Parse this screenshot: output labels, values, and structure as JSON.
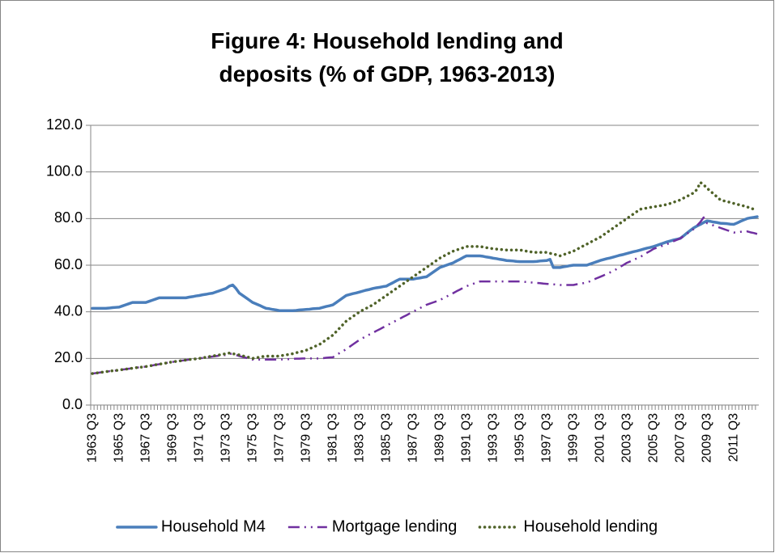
{
  "chart_data": {
    "type": "line",
    "title": [
      "Figure 4: Household lending and",
      "deposits (% of GDP, 1963-2013)"
    ],
    "categories": [
      "1963 Q3",
      null,
      null,
      null,
      null,
      null,
      null,
      null,
      "1965 Q3",
      null,
      null,
      null,
      null,
      null,
      null,
      null,
      "1967 Q3",
      null,
      null,
      null,
      null,
      null,
      null,
      null,
      "1969 Q3",
      null,
      null,
      null,
      null,
      null,
      null,
      null,
      "1971 Q3",
      null,
      null,
      null,
      null,
      null,
      null,
      null,
      "1973 Q3",
      null,
      null,
      null,
      null,
      null,
      null,
      null,
      "1975 Q3",
      null,
      null,
      null,
      null,
      null,
      null,
      null,
      "1977 Q3",
      null,
      null,
      null,
      null,
      null,
      null,
      null,
      "1979 Q3",
      null,
      null,
      null,
      null,
      null,
      null,
      null,
      "1981 Q3",
      null,
      null,
      null,
      null,
      null,
      null,
      null,
      "1983 Q3",
      null,
      null,
      null,
      null,
      null,
      null,
      null,
      "1985 Q3",
      null,
      null,
      null,
      null,
      null,
      null,
      null,
      "1987 Q3",
      null,
      null,
      null,
      null,
      null,
      null,
      null,
      "1989 Q3",
      null,
      null,
      null,
      null,
      null,
      null,
      null,
      "1991 Q3",
      null,
      null,
      null,
      null,
      null,
      null,
      null,
      "1993 Q3",
      null,
      null,
      null,
      null,
      null,
      null,
      null,
      "1995 Q3",
      null,
      null,
      null,
      null,
      null,
      null,
      null,
      "1997 Q3",
      null,
      null,
      null,
      null,
      null,
      null,
      null,
      "1999 Q3",
      null,
      null,
      null,
      null,
      null,
      null,
      null,
      "2001 Q3",
      null,
      null,
      null,
      null,
      null,
      null,
      null,
      "2003 Q3",
      null,
      null,
      null,
      null,
      null,
      null,
      null,
      "2005 Q3",
      null,
      null,
      null,
      null,
      null,
      null,
      null,
      "2007 Q3",
      null,
      null,
      null,
      null,
      null,
      null,
      null,
      "2009 Q3",
      null,
      null,
      null,
      null,
      null,
      null,
      null,
      "2011 Q3",
      null,
      null,
      null,
      null,
      null,
      null,
      null
    ],
    "series": [
      {
        "name": "Household M4",
        "color": "#4a7ebb",
        "style": "solid",
        "values": [
          41.5,
          41.5,
          41.5,
          41.5,
          41.5,
          41.6,
          41.8,
          41.9,
          42,
          42.5,
          43,
          43.5,
          44,
          44,
          44,
          44,
          44,
          44.5,
          45,
          45.5,
          46,
          46,
          46,
          46,
          46,
          46,
          46,
          46,
          46,
          46.3,
          46.5,
          46.8,
          47,
          47.3,
          47.5,
          47.8,
          48,
          48.5,
          49,
          49.5,
          50,
          51,
          51.5,
          50,
          48,
          47,
          46,
          45,
          44,
          43.4,
          42.8,
          42.1,
          41.5,
          41.3,
          41,
          40.8,
          40.5,
          40.5,
          40.5,
          40.5,
          40.5,
          40.6,
          40.8,
          40.9,
          41,
          41.1,
          41.3,
          41.4,
          41.5,
          41.9,
          42.3,
          42.6,
          43,
          44,
          45,
          46,
          47,
          47.4,
          47.8,
          48.1,
          48.5,
          48.9,
          49.3,
          49.6,
          50,
          50.3,
          50.5,
          50.8,
          51,
          51.8,
          52.5,
          53.3,
          54,
          54,
          54,
          54,
          54,
          54.3,
          54.5,
          54.8,
          55,
          56,
          57,
          58,
          59,
          59.5,
          60,
          60.5,
          61,
          61.8,
          62.5,
          63.3,
          64,
          64,
          64,
          64,
          64,
          63.8,
          63.5,
          63.3,
          63,
          62.8,
          62.5,
          62.3,
          62,
          61.9,
          61.8,
          61.6,
          61.5,
          61.5,
          61.5,
          61.5,
          61.5,
          61.6,
          61.8,
          61.9,
          62,
          62.5,
          59,
          59,
          59,
          59.3,
          59.5,
          59.8,
          60,
          60,
          60,
          60,
          60,
          60.5,
          61,
          61.5,
          62,
          62.4,
          62.8,
          63.1,
          63.5,
          63.9,
          64.3,
          64.6,
          65,
          65.4,
          65.8,
          66.1,
          66.5,
          66.9,
          67.3,
          67.6,
          68,
          68.5,
          69,
          69.5,
          70,
          70.4,
          70.8,
          71.1,
          71.5,
          72.6,
          73.8,
          74.9,
          76,
          76.8,
          77.5,
          78.3,
          79,
          78.8,
          78.5,
          78.3,
          78,
          77.9,
          77.8,
          77.6,
          77.5,
          78.1,
          78.8,
          79.4,
          80,
          80.3,
          80.5,
          80.8
        ]
      },
      {
        "name": "Mortgage lending",
        "color": "#7030a0",
        "style": "dash-dot",
        "values": [
          13.5,
          13.7,
          13.9,
          14.1,
          14.3,
          14.5,
          14.7,
          14.8,
          15,
          15.2,
          15.4,
          15.6,
          15.8,
          16,
          16.2,
          16.3,
          16.5,
          16.8,
          17,
          17.3,
          17.5,
          17.8,
          18,
          18.3,
          18.5,
          18.7,
          18.9,
          19.1,
          19.3,
          19.5,
          19.7,
          19.8,
          20,
          20.2,
          20.4,
          20.6,
          20.8,
          21,
          21.2,
          21.3,
          21.5,
          22,
          22,
          21.5,
          21,
          20.6,
          20.3,
          19.9,
          19.5,
          19.5,
          19.5,
          19.5,
          19.5,
          19.5,
          19.5,
          19.5,
          19.5,
          19.6,
          19.7,
          19.7,
          19.8,
          19.9,
          19.9,
          20,
          20,
          20,
          20,
          20,
          20,
          20.1,
          20.3,
          20.4,
          20.5,
          21.4,
          22.3,
          23.1,
          24,
          25,
          26,
          27,
          28,
          28.8,
          29.5,
          30.3,
          31,
          31.8,
          32.5,
          33.3,
          34,
          34.8,
          35.5,
          36.3,
          37,
          37.8,
          38.5,
          39.3,
          40,
          40.8,
          41.5,
          42.3,
          43,
          43.5,
          44,
          44.5,
          45,
          45.8,
          46.5,
          47.3,
          48,
          48.8,
          49.5,
          50.3,
          51,
          51.5,
          52,
          52.5,
          53,
          53,
          53,
          53,
          53,
          53,
          53,
          53,
          53,
          53,
          53,
          53,
          53,
          52.9,
          52.8,
          52.6,
          52.5,
          52.4,
          52.3,
          52.1,
          52,
          51.9,
          51.8,
          51.6,
          51.5,
          51.5,
          51.5,
          51.5,
          51.5,
          51.8,
          52,
          52.3,
          52.5,
          53.1,
          53.8,
          54.4,
          55,
          55.6,
          56.3,
          56.9,
          57.5,
          58.4,
          59.3,
          60.1,
          61,
          61.6,
          62.3,
          62.9,
          63.5,
          64.4,
          65.3,
          66.1,
          67,
          67.5,
          68,
          68.5,
          69,
          69.6,
          70.3,
          70.9,
          71.5,
          72.5,
          73.5,
          74.5,
          75.5,
          77,
          78.5,
          80.5,
          78,
          77.5,
          77,
          76.5,
          76,
          75.5,
          75,
          74.5,
          74,
          74.1,
          74.3,
          74.4,
          74.5,
          74.1,
          73.8,
          73.4
        ]
      },
      {
        "name": "Household lending",
        "color": "#4f6228",
        "style": "dot",
        "values": [
          13.5,
          13.7,
          13.9,
          14.1,
          14.3,
          14.5,
          14.7,
          14.8,
          15,
          15.2,
          15.4,
          15.6,
          15.8,
          16,
          16.2,
          16.3,
          16.5,
          16.8,
          17,
          17.3,
          17.5,
          17.8,
          18,
          18.3,
          18.5,
          18.7,
          18.9,
          19.1,
          19.3,
          19.5,
          19.7,
          19.8,
          20,
          20.3,
          20.5,
          20.8,
          21,
          21.3,
          21.5,
          21.8,
          22,
          22.3,
          22,
          21.8,
          21.5,
          21.1,
          20.8,
          20.4,
          20,
          20.3,
          20.5,
          20.8,
          21,
          21,
          21,
          21,
          21,
          21.3,
          21.5,
          21.8,
          22,
          22.4,
          22.8,
          23.1,
          23.5,
          24.1,
          24.8,
          25.4,
          26,
          27,
          28,
          29,
          30,
          31.5,
          33,
          34.5,
          36,
          37,
          38,
          39,
          40,
          40.8,
          41.5,
          42.3,
          43,
          44,
          45,
          46,
          47,
          48,
          49,
          50,
          51,
          52,
          53,
          54,
          55,
          56,
          57,
          58,
          59,
          60,
          61,
          62,
          63,
          63.8,
          64.5,
          65.3,
          66,
          66.5,
          67,
          67.5,
          68,
          68,
          68,
          68,
          68,
          67.8,
          67.5,
          67.3,
          67,
          66.9,
          66.8,
          66.6,
          66.5,
          66.5,
          66.5,
          66.5,
          66.5,
          66.3,
          66,
          65.8,
          65.5,
          65.5,
          65.5,
          65.5,
          65.5,
          65.1,
          64.8,
          64.4,
          64,
          64.5,
          65,
          65.5,
          66,
          66.8,
          67.5,
          68.3,
          69,
          69.8,
          70.5,
          71.3,
          72,
          73,
          74,
          75,
          76,
          77,
          78,
          79,
          80,
          81,
          82,
          83,
          84,
          84.3,
          84.5,
          84.8,
          85,
          85.3,
          85.5,
          85.8,
          86,
          86.5,
          87,
          87.5,
          88,
          88.8,
          89.5,
          90.3,
          91,
          92.5,
          95.5,
          94.5,
          93,
          91.8,
          90.5,
          89.3,
          88,
          87.6,
          87.3,
          86.9,
          86.5,
          86.1,
          85.8,
          85.4,
          85,
          84.5,
          84,
          83.5
        ]
      }
    ],
    "ylim": [
      0,
      120
    ],
    "yticks": [
      {
        "value": 0,
        "label": "0.0"
      },
      {
        "value": 20,
        "label": "20.0"
      },
      {
        "value": 40,
        "label": "40.0"
      },
      {
        "value": 60,
        "label": "60.0"
      },
      {
        "value": 80,
        "label": "80.0"
      },
      {
        "value": 100,
        "label": "100.0"
      },
      {
        "value": 120,
        "label": "120.0"
      }
    ],
    "grid": true,
    "legend": "bottom"
  }
}
